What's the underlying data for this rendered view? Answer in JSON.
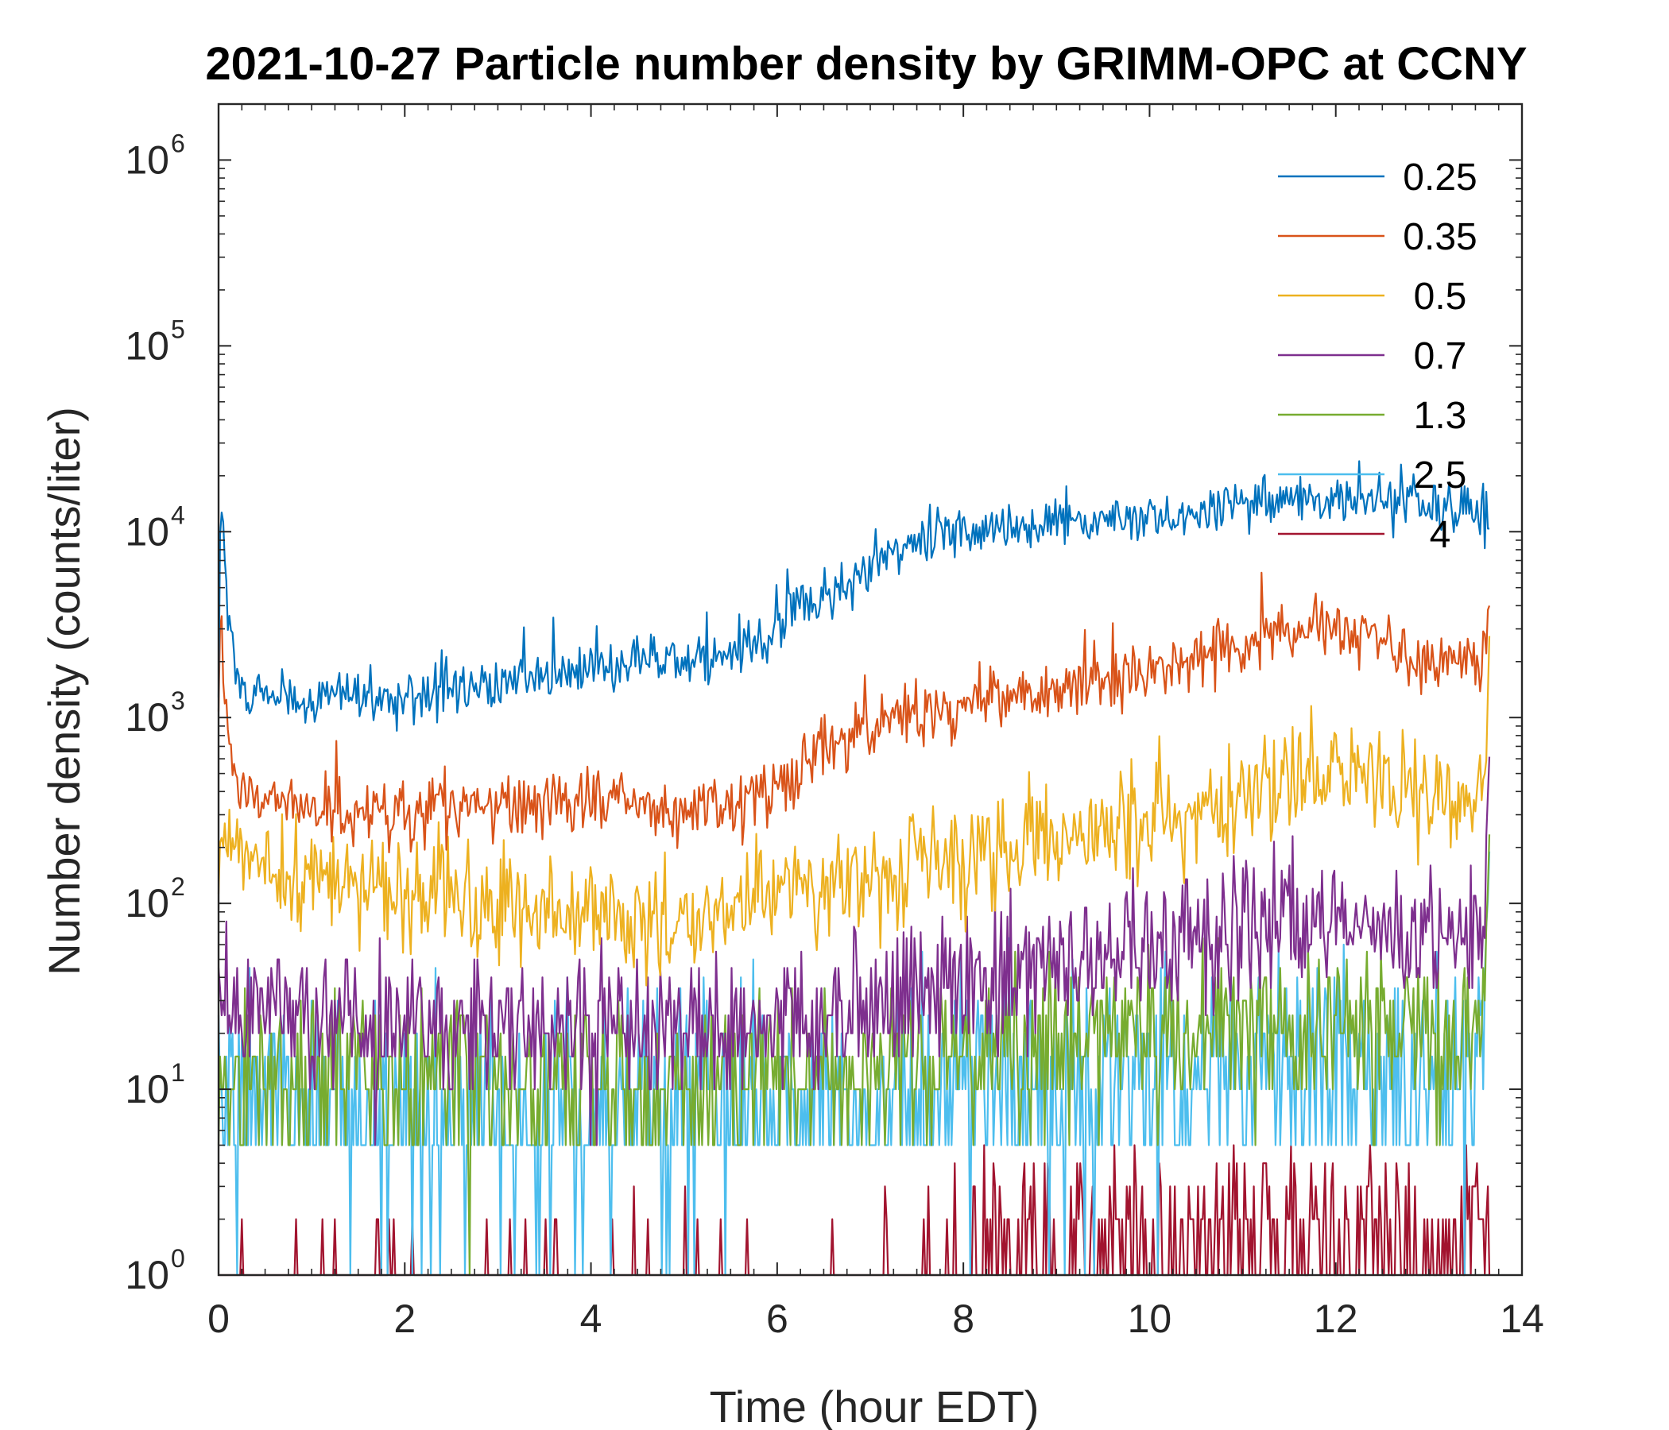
{
  "chart_data": {
    "type": "line",
    "title": "2021-10-27 Particle number density by GRIMM-OPC at CCNY",
    "xlabel": "Time (hour EDT)",
    "ylabel": "Number density (counts/liter)",
    "xscale": "linear",
    "yscale": "log",
    "xlim": [
      0,
      14
    ],
    "ylim": [
      1,
      2000000
    ],
    "x_ticks": [
      0,
      2,
      4,
      6,
      8,
      10,
      12,
      14
    ],
    "x_tick_labels": [
      "0",
      "2",
      "4",
      "6",
      "8",
      "10",
      "12",
      "14"
    ],
    "y_ticks": [
      1,
      10,
      100,
      1000,
      10000,
      100000,
      1000000
    ],
    "y_tick_labels": [
      {
        "base": "10",
        "exp": "0"
      },
      {
        "base": "10",
        "exp": "1"
      },
      {
        "base": "10",
        "exp": "2"
      },
      {
        "base": "10",
        "exp": "3"
      },
      {
        "base": "10",
        "exp": "4"
      },
      {
        "base": "10",
        "exp": "5"
      },
      {
        "base": "10",
        "exp": "6"
      }
    ],
    "legend_position": "top-right",
    "x_end": 13.65,
    "series": [
      {
        "name": "0.25",
        "color": "#0072BD",
        "noise": 0.07,
        "spike": 0.35,
        "anchors": [
          [
            0,
            1400
          ],
          [
            0.02,
            19000
          ],
          [
            0.1,
            4000
          ],
          [
            0.2,
            1450
          ],
          [
            1,
            1250
          ],
          [
            2,
            1300
          ],
          [
            3,
            1500
          ],
          [
            4,
            1800
          ],
          [
            5,
            2000
          ],
          [
            6,
            2600
          ],
          [
            6.1,
            3800
          ],
          [
            7,
            6000
          ],
          [
            7.2,
            7500
          ],
          [
            8,
            9500
          ],
          [
            9,
            11000
          ],
          [
            10,
            12000
          ],
          [
            11,
            14000
          ],
          [
            11.5,
            15000
          ],
          [
            12.2,
            14500
          ],
          [
            13,
            13500
          ],
          [
            13.65,
            13000
          ]
        ]
      },
      {
        "name": "0.35",
        "color": "#D95319",
        "noise": 0.09,
        "spike": 0.12,
        "anchors": [
          [
            0,
            1200
          ],
          [
            0.02,
            4200
          ],
          [
            0.12,
            600
          ],
          [
            0.3,
            400
          ],
          [
            1,
            340
          ],
          [
            2,
            300
          ],
          [
            3,
            330
          ],
          [
            4,
            350
          ],
          [
            5,
            320
          ],
          [
            6,
            380
          ],
          [
            6.3,
            600
          ],
          [
            7,
            950
          ],
          [
            8,
            1150
          ],
          [
            9,
            1500
          ],
          [
            10,
            1800
          ],
          [
            11,
            2400
          ],
          [
            11.6,
            3200
          ],
          [
            12,
            3100
          ],
          [
            12.5,
            2700
          ],
          [
            13,
            2100
          ],
          [
            13.55,
            1900
          ],
          [
            13.62,
            2500
          ],
          [
            13.65,
            3900
          ]
        ]
      },
      {
        "name": "0.5",
        "color": "#EDB120",
        "noise": 0.15,
        "spike": 0.1,
        "anchors": [
          [
            0,
            200
          ],
          [
            0.05,
            280
          ],
          [
            0.2,
            170
          ],
          [
            1,
            140
          ],
          [
            2,
            110
          ],
          [
            3,
            95
          ],
          [
            4,
            85
          ],
          [
            5,
            75
          ],
          [
            5.5,
            90
          ],
          [
            6,
            110
          ],
          [
            7,
            140
          ],
          [
            8,
            180
          ],
          [
            9,
            220
          ],
          [
            10,
            280
          ],
          [
            11,
            360
          ],
          [
            11.6,
            470
          ],
          [
            12.2,
            520
          ],
          [
            12.8,
            420
          ],
          [
            13.5,
            330
          ],
          [
            13.62,
            700
          ],
          [
            13.65,
            1450
          ]
        ]
      },
      {
        "name": "0.7",
        "color": "#7E2F8E",
        "noise": 0.2,
        "spike": 0.08,
        "anchors": [
          [
            0,
            30
          ],
          [
            1,
            24
          ],
          [
            2,
            22
          ],
          [
            3,
            23
          ],
          [
            4,
            22
          ],
          [
            5,
            21
          ],
          [
            6,
            24
          ],
          [
            7,
            28
          ],
          [
            8,
            38
          ],
          [
            9,
            50
          ],
          [
            10,
            60
          ],
          [
            11,
            70
          ],
          [
            12,
            75
          ],
          [
            13,
            70
          ],
          [
            13.55,
            70
          ],
          [
            13.62,
            200
          ],
          [
            13.65,
            600
          ]
        ]
      },
      {
        "name": "1.3",
        "color": "#77AC30",
        "noise": 0.22,
        "spike": 0.05,
        "anchors": [
          [
            0,
            12
          ],
          [
            2,
            11
          ],
          [
            4,
            10
          ],
          [
            6,
            11
          ],
          [
            8,
            14
          ],
          [
            9,
            18
          ],
          [
            10,
            20
          ],
          [
            12,
            22
          ],
          [
            13.55,
            18
          ],
          [
            13.65,
            150
          ]
        ]
      },
      {
        "name": "2.5",
        "color": "#4DBEEE",
        "noise": 0.32,
        "spike": 0.03,
        "anchors": [
          [
            0,
            9
          ],
          [
            2,
            7
          ],
          [
            4,
            7
          ],
          [
            6,
            8
          ],
          [
            8,
            10
          ],
          [
            10,
            12
          ],
          [
            12,
            13
          ],
          [
            13.55,
            11
          ],
          [
            13.65,
            140
          ]
        ]
      },
      {
        "name": "4",
        "color": "#A2142F",
        "noise": 0,
        "spike": 0,
        "discrete": true,
        "anchors": [
          [
            0,
            0.3
          ],
          [
            6,
            0.35
          ],
          [
            7,
            0.5
          ],
          [
            8,
            0.7
          ],
          [
            8.3,
            1.5
          ],
          [
            13,
            1.6
          ],
          [
            13.65,
            2
          ]
        ]
      }
    ]
  }
}
